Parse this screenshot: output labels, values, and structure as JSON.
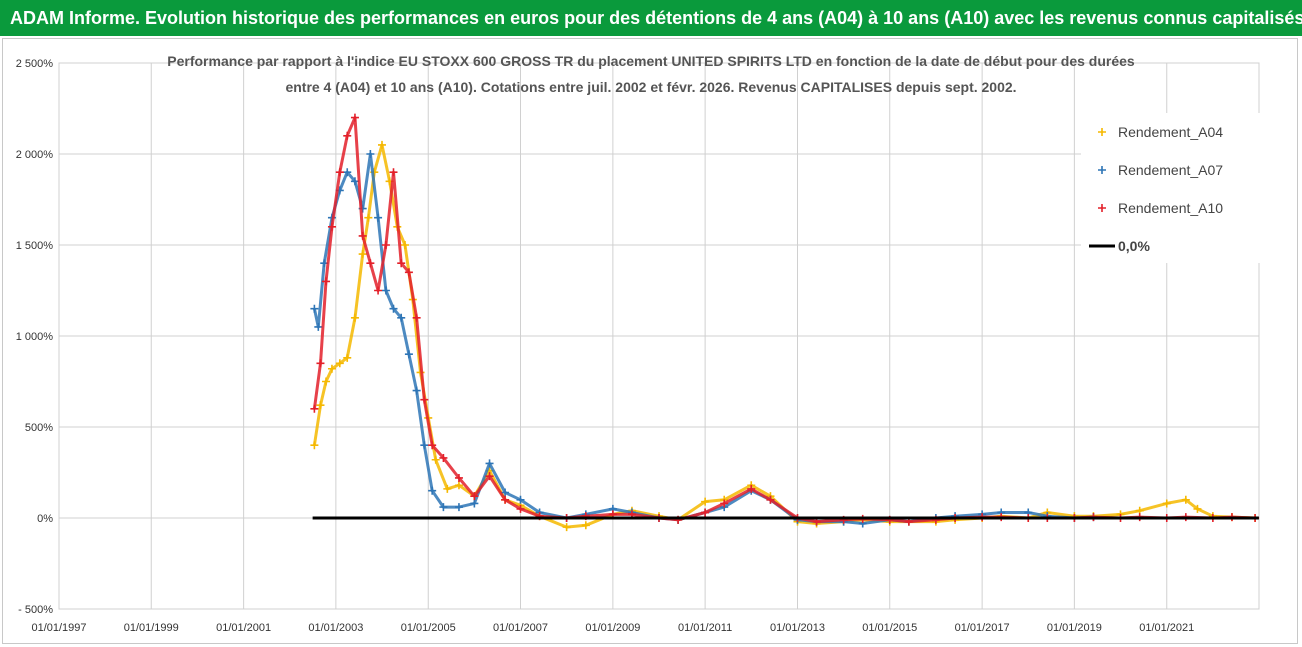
{
  "banner": {
    "title": "ADAM Informe. Evolution historique des performances en euros pour des détentions de 4 ans (A04) à 10 ans (A10) avec les revenus connus capitalisés"
  },
  "chart_data": {
    "type": "scatter",
    "title_lines": [
      "Performance par rapport à l'indice EU STOXX 600 GROSS TR  du placement UNITED SPIRITS LTD en fonction de la date de début pour des durées",
      "entre 4 (A04) et 10 ans (A10). Cotations entre juil. 2002 et févr. 2026. Revenus CAPITALISES depuis sept. 2002."
    ],
    "xlim": [
      "1997-01-01",
      "2023-01-01"
    ],
    "ylim": [
      -500,
      2500
    ],
    "y_ticks": [
      2500,
      2000,
      1500,
      1000,
      500,
      0,
      -500
    ],
    "y_tick_labels": [
      "2 500%",
      "2 000%",
      "1 500%",
      "1 000%",
      "500%",
      "0%",
      "- 500%"
    ],
    "x_ticks": [
      "1997-01-01",
      "1999-01-01",
      "2001-01-01",
      "2003-01-01",
      "2005-01-01",
      "2007-01-01",
      "2009-01-01",
      "2011-01-01",
      "2013-01-01",
      "2015-01-01",
      "2017-01-01",
      "2019-01-01",
      "2021-01-01"
    ],
    "x_tick_labels": [
      "01/01/1997",
      "01/01/1999",
      "01/01/2001",
      "01/01/2003",
      "01/01/2005",
      "01/01/2007",
      "01/01/2009",
      "01/01/2011",
      "01/01/2013",
      "01/01/2015",
      "01/01/2017",
      "01/01/2019",
      "01/01/2021"
    ],
    "grid": true,
    "legend_position": "top-right",
    "series": [
      {
        "name": "Rendement_A04",
        "color": "#f5b800",
        "marker": "plus",
        "points": [
          [
            "2002-07-15",
            400
          ],
          [
            "2002-09-01",
            620
          ],
          [
            "2002-10-15",
            750
          ],
          [
            "2002-12-01",
            820
          ],
          [
            "2003-02-01",
            850
          ],
          [
            "2003-04-01",
            880
          ],
          [
            "2003-06-01",
            1100
          ],
          [
            "2003-08-01",
            1450
          ],
          [
            "2003-09-15",
            1650
          ],
          [
            "2003-11-01",
            1900
          ],
          [
            "2004-01-01",
            2050
          ],
          [
            "2004-03-01",
            1850
          ],
          [
            "2004-05-01",
            1600
          ],
          [
            "2004-07-01",
            1500
          ],
          [
            "2004-09-01",
            1200
          ],
          [
            "2004-11-01",
            800
          ],
          [
            "2005-01-01",
            550
          ],
          [
            "2005-03-01",
            320
          ],
          [
            "2005-06-01",
            160
          ],
          [
            "2005-09-01",
            180
          ],
          [
            "2006-01-01",
            120
          ],
          [
            "2006-05-01",
            260
          ],
          [
            "2006-09-01",
            100
          ],
          [
            "2007-01-01",
            70
          ],
          [
            "2007-06-01",
            10
          ],
          [
            "2008-01-01",
            -50
          ],
          [
            "2008-06-01",
            -40
          ],
          [
            "2009-01-01",
            20
          ],
          [
            "2009-06-01",
            40
          ],
          [
            "2010-01-01",
            10
          ],
          [
            "2010-06-01",
            -10
          ],
          [
            "2011-01-01",
            90
          ],
          [
            "2011-06-01",
            100
          ],
          [
            "2012-01-01",
            180
          ],
          [
            "2012-06-01",
            120
          ],
          [
            "2013-01-01",
            -20
          ],
          [
            "2013-06-01",
            -30
          ],
          [
            "2014-01-01",
            -20
          ],
          [
            "2014-06-01",
            -10
          ],
          [
            "2015-01-01",
            -20
          ],
          [
            "2015-06-01",
            -20
          ],
          [
            "2016-01-01",
            -20
          ],
          [
            "2016-06-01",
            -10
          ],
          [
            "2017-01-01",
            0
          ],
          [
            "2017-06-01",
            10
          ],
          [
            "2018-01-01",
            0
          ],
          [
            "2018-06-01",
            30
          ],
          [
            "2019-01-01",
            10
          ],
          [
            "2019-06-01",
            10
          ],
          [
            "2020-01-01",
            20
          ],
          [
            "2020-06-01",
            40
          ],
          [
            "2021-01-01",
            80
          ],
          [
            "2021-06-01",
            100
          ],
          [
            "2021-09-01",
            50
          ],
          [
            "2022-01-01",
            10
          ],
          [
            "2022-06-01",
            5
          ],
          [
            "2022-12-01",
            0
          ]
        ]
      },
      {
        "name": "Rendement_A07",
        "color": "#2e75b6",
        "marker": "plus",
        "points": [
          [
            "2002-07-15",
            1150
          ],
          [
            "2002-08-15",
            1050
          ],
          [
            "2002-10-01",
            1400
          ],
          [
            "2002-12-01",
            1650
          ],
          [
            "2003-02-01",
            1800
          ],
          [
            "2003-04-01",
            1900
          ],
          [
            "2003-06-01",
            1850
          ],
          [
            "2003-08-01",
            1700
          ],
          [
            "2003-10-01",
            2000
          ],
          [
            "2003-12-01",
            1650
          ],
          [
            "2004-02-01",
            1250
          ],
          [
            "2004-04-01",
            1150
          ],
          [
            "2004-06-01",
            1100
          ],
          [
            "2004-08-01",
            900
          ],
          [
            "2004-10-01",
            700
          ],
          [
            "2004-12-01",
            400
          ],
          [
            "2005-02-01",
            150
          ],
          [
            "2005-05-01",
            60
          ],
          [
            "2005-09-01",
            60
          ],
          [
            "2006-01-01",
            80
          ],
          [
            "2006-05-01",
            300
          ],
          [
            "2006-09-01",
            140
          ],
          [
            "2007-01-01",
            100
          ],
          [
            "2007-06-01",
            30
          ],
          [
            "2008-01-01",
            0
          ],
          [
            "2008-06-01",
            20
          ],
          [
            "2009-01-01",
            50
          ],
          [
            "2009-06-01",
            30
          ],
          [
            "2010-01-01",
            0
          ],
          [
            "2010-06-01",
            -10
          ],
          [
            "2011-01-01",
            30
          ],
          [
            "2011-06-01",
            60
          ],
          [
            "2012-01-01",
            150
          ],
          [
            "2012-06-01",
            100
          ],
          [
            "2013-01-01",
            -10
          ],
          [
            "2013-06-01",
            -20
          ],
          [
            "2014-01-01",
            -20
          ],
          [
            "2014-06-01",
            -30
          ],
          [
            "2015-01-01",
            -10
          ],
          [
            "2015-06-01",
            -20
          ],
          [
            "2016-01-01",
            0
          ],
          [
            "2016-06-01",
            10
          ],
          [
            "2017-01-01",
            20
          ],
          [
            "2017-06-01",
            30
          ],
          [
            "2018-01-01",
            30
          ],
          [
            "2018-06-01",
            10
          ],
          [
            "2019-01-01",
            0
          ],
          [
            "2019-06-01",
            5
          ]
        ]
      },
      {
        "name": "Rendement_A10",
        "color": "#e3202a",
        "marker": "plus",
        "points": [
          [
            "2002-07-15",
            600
          ],
          [
            "2002-09-01",
            850
          ],
          [
            "2002-10-15",
            1300
          ],
          [
            "2002-12-01",
            1600
          ],
          [
            "2003-02-01",
            1900
          ],
          [
            "2003-04-01",
            2100
          ],
          [
            "2003-06-01",
            2200
          ],
          [
            "2003-08-01",
            1550
          ],
          [
            "2003-10-01",
            1400
          ],
          [
            "2003-12-01",
            1250
          ],
          [
            "2004-02-01",
            1500
          ],
          [
            "2004-04-01",
            1900
          ],
          [
            "2004-06-01",
            1400
          ],
          [
            "2004-08-01",
            1350
          ],
          [
            "2004-10-01",
            1100
          ],
          [
            "2004-12-01",
            650
          ],
          [
            "2005-02-01",
            400
          ],
          [
            "2005-05-01",
            330
          ],
          [
            "2005-09-01",
            220
          ],
          [
            "2006-01-01",
            120
          ],
          [
            "2006-05-01",
            230
          ],
          [
            "2006-09-01",
            100
          ],
          [
            "2007-01-01",
            50
          ],
          [
            "2007-06-01",
            10
          ],
          [
            "2008-01-01",
            0
          ],
          [
            "2008-06-01",
            10
          ],
          [
            "2009-01-01",
            20
          ],
          [
            "2009-06-01",
            20
          ],
          [
            "2010-01-01",
            0
          ],
          [
            "2010-06-01",
            -10
          ],
          [
            "2011-01-01",
            30
          ],
          [
            "2011-06-01",
            80
          ],
          [
            "2012-01-01",
            160
          ],
          [
            "2012-06-01",
            100
          ],
          [
            "2013-01-01",
            0
          ],
          [
            "2013-06-01",
            -20
          ],
          [
            "2014-01-01",
            -10
          ],
          [
            "2014-06-01",
            -5
          ],
          [
            "2015-01-01",
            -10
          ],
          [
            "2015-06-01",
            -20
          ],
          [
            "2016-01-01",
            -10
          ],
          [
            "2016-06-01",
            0
          ],
          [
            "2017-01-01",
            5
          ],
          [
            "2017-06-01",
            5
          ],
          [
            "2018-01-01",
            0
          ],
          [
            "2018-06-01",
            0
          ],
          [
            "2019-01-01",
            0
          ],
          [
            "2019-06-01",
            5
          ],
          [
            "2020-01-01",
            0
          ],
          [
            "2020-06-01",
            5
          ],
          [
            "2021-01-01",
            0
          ],
          [
            "2021-06-01",
            5
          ],
          [
            "2022-01-01",
            0
          ],
          [
            "2022-06-01",
            5
          ],
          [
            "2022-12-01",
            0
          ]
        ]
      },
      {
        "name": "0,0%",
        "color": "#000000",
        "marker": "line",
        "points": [
          [
            "2002-07-01",
            0
          ],
          [
            "2022-12-31",
            0
          ]
        ]
      }
    ]
  }
}
